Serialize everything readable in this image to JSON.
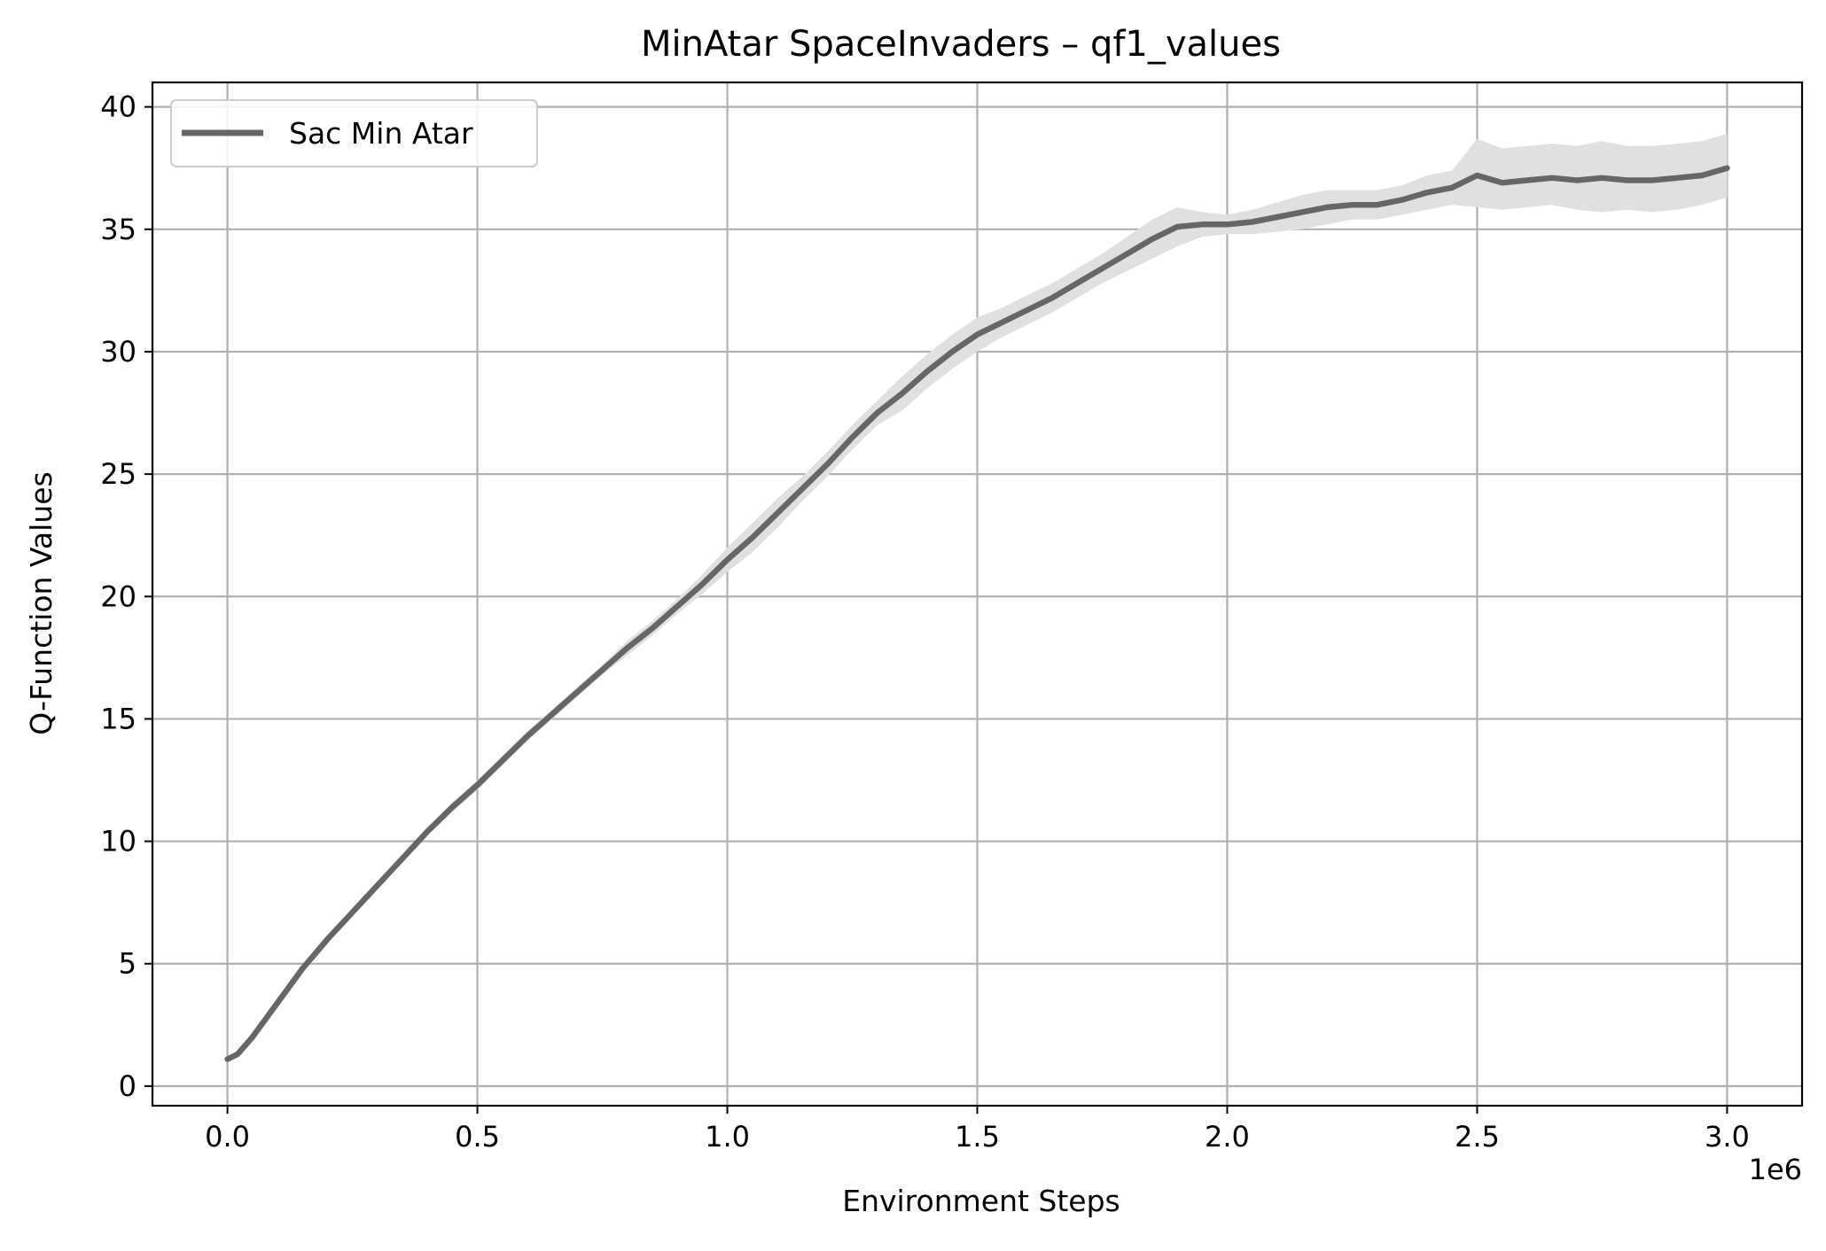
{
  "chart_data": {
    "type": "line",
    "title": "MinAtar SpaceInvaders – qf1_values",
    "xlabel": "Environment Steps",
    "ylabel": "Q-Function Values",
    "x_offset_label": "1e6",
    "xlim": [
      -0.15,
      3.15
    ],
    "ylim": [
      -0.8,
      41.0
    ],
    "x_ticks": [
      0.0,
      0.5,
      1.0,
      1.5,
      2.0,
      2.5,
      3.0
    ],
    "x_tick_labels": [
      "0.0",
      "0.5",
      "1.0",
      "1.5",
      "2.0",
      "2.5",
      "3.0"
    ],
    "y_ticks": [
      0,
      5,
      10,
      15,
      20,
      25,
      30,
      35,
      40
    ],
    "y_tick_labels": [
      "0",
      "5",
      "10",
      "15",
      "20",
      "25",
      "30",
      "35",
      "40"
    ],
    "grid": true,
    "legend_position": "upper-left",
    "series": [
      {
        "name": "Sac Min Atar",
        "color": "#666666",
        "band_color": "#e0e0e0",
        "x": [
          0.0,
          0.02,
          0.05,
          0.1,
          0.15,
          0.2,
          0.25,
          0.3,
          0.35,
          0.4,
          0.45,
          0.5,
          0.55,
          0.6,
          0.65,
          0.7,
          0.75,
          0.8,
          0.85,
          0.9,
          0.95,
          1.0,
          1.05,
          1.1,
          1.15,
          1.2,
          1.25,
          1.3,
          1.35,
          1.4,
          1.45,
          1.5,
          1.55,
          1.6,
          1.65,
          1.7,
          1.75,
          1.8,
          1.85,
          1.9,
          1.95,
          2.0,
          2.05,
          2.1,
          2.15,
          2.2,
          2.25,
          2.3,
          2.35,
          2.4,
          2.45,
          2.5,
          2.55,
          2.6,
          2.65,
          2.7,
          2.75,
          2.8,
          2.85,
          2.9,
          2.95,
          3.0
        ],
        "y": [
          1.1,
          1.3,
          2.0,
          3.4,
          4.8,
          6.0,
          7.1,
          8.2,
          9.3,
          10.4,
          11.4,
          12.3,
          13.3,
          14.3,
          15.2,
          16.1,
          17.0,
          17.9,
          18.7,
          19.6,
          20.5,
          21.5,
          22.4,
          23.4,
          24.4,
          25.4,
          26.5,
          27.5,
          28.3,
          29.2,
          30.0,
          30.7,
          31.2,
          31.7,
          32.2,
          32.8,
          33.4,
          34.0,
          34.6,
          35.1,
          35.2,
          35.2,
          35.3,
          35.5,
          35.7,
          35.9,
          36.0,
          36.0,
          36.2,
          36.5,
          36.7,
          37.2,
          36.9,
          37.0,
          37.1,
          37.0,
          37.1,
          37.0,
          37.0,
          37.1,
          37.2,
          37.5
        ],
        "lower": [
          1.0,
          1.2,
          1.9,
          3.3,
          4.7,
          5.9,
          7.0,
          8.1,
          9.2,
          10.3,
          11.2,
          12.1,
          13.1,
          14.1,
          15.0,
          15.9,
          16.8,
          17.6,
          18.4,
          19.3,
          20.1,
          21.0,
          21.8,
          22.8,
          23.9,
          24.9,
          26.0,
          27.0,
          27.6,
          28.5,
          29.3,
          30.0,
          30.6,
          31.1,
          31.6,
          32.2,
          32.8,
          33.3,
          33.8,
          34.3,
          34.7,
          34.8,
          34.8,
          34.9,
          35.0,
          35.2,
          35.4,
          35.4,
          35.6,
          35.8,
          36.0,
          35.9,
          35.8,
          35.9,
          36.0,
          35.8,
          35.7,
          35.8,
          35.7,
          35.8,
          36.0,
          36.3
        ],
        "upper": [
          1.2,
          1.4,
          2.1,
          3.5,
          4.9,
          6.1,
          7.2,
          8.3,
          9.4,
          10.5,
          11.6,
          12.5,
          13.5,
          14.5,
          15.4,
          16.3,
          17.2,
          18.2,
          19.0,
          19.9,
          20.9,
          22.0,
          23.0,
          24.0,
          24.9,
          25.9,
          27.0,
          28.0,
          29.0,
          29.9,
          30.7,
          31.4,
          31.8,
          32.3,
          32.8,
          33.4,
          34.0,
          34.7,
          35.4,
          35.9,
          35.7,
          35.6,
          35.8,
          36.1,
          36.4,
          36.6,
          36.6,
          36.6,
          36.8,
          37.2,
          37.4,
          38.7,
          38.3,
          38.4,
          38.5,
          38.4,
          38.6,
          38.4,
          38.4,
          38.5,
          38.6,
          38.9
        ]
      }
    ]
  }
}
